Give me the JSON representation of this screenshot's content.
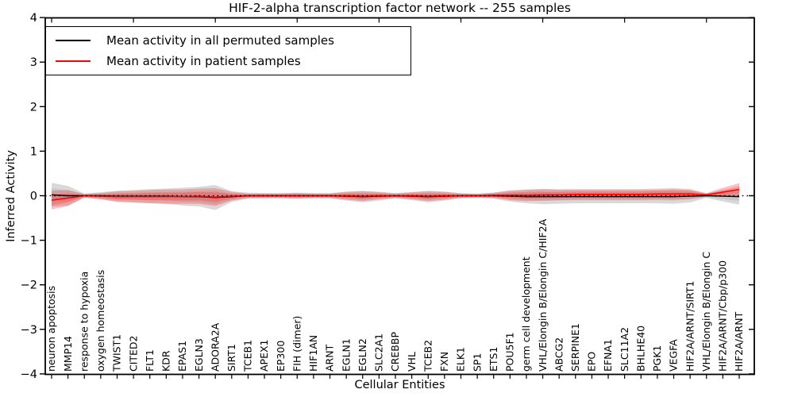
{
  "figure": {
    "background": "#ffffff",
    "axes_color": "#000000"
  },
  "chart_data": {
    "type": "line",
    "title": "HIF-2-alpha transcription factor network -- 255 samples",
    "xlabel": "Cellular Entities",
    "ylabel": "Inferred Activity",
    "ylim": [
      -4,
      4
    ],
    "yticks": [
      4,
      3,
      2,
      1,
      0,
      -1,
      -2,
      -3,
      -4
    ],
    "grid": false,
    "legend_position": "upper left",
    "zero_line_style": "dotted",
    "categories": [
      "neuron apoptosis",
      "MMP14",
      "response to hypoxia",
      "oxygen homeostasis",
      "TWIST1",
      "CITED2",
      "FLT1",
      "KDR",
      "EPAS1",
      "EGLN3",
      "ADORA2A",
      "SIRT1",
      "TCEB1",
      "APEX1",
      "EP300",
      "FIH (dimer)",
      "HIF1AN",
      "ARNT",
      "EGLN1",
      "EGLN2",
      "SLC2A1",
      "CREBBP",
      "VHL",
      "TCEB2",
      "FXN",
      "ELK1",
      "SP1",
      "ETS1",
      "POU5F1",
      "germ cell development",
      "VHL/Elongin B/Elongin C/HIF2A",
      "ABCG2",
      "SERPINE1",
      "EPO",
      "EFNA1",
      "SLC11A2",
      "BHLHE40",
      "PGK1",
      "VEGFA",
      "HIF2A/ARNT/SIRT1",
      "VHL/Elongin B/Elongin C",
      "HIF2A/ARNT/Cbp/p300",
      "HIF2A/ARNT"
    ],
    "series": [
      {
        "name": "Mean activity in all permuted samples",
        "color": "#000000",
        "band_rgb": "0,0,0",
        "band_outer_alpha": 0.15,
        "band_inner_alpha": 0.08,
        "mean": [
          0.02,
          0.0,
          0.0,
          0.0,
          -0.01,
          -0.01,
          -0.01,
          -0.01,
          -0.02,
          -0.02,
          -0.04,
          -0.02,
          0,
          0,
          0,
          0,
          0,
          0,
          -0.01,
          -0.02,
          -0.01,
          0,
          -0.01,
          -0.02,
          -0.01,
          0,
          0,
          0,
          -0.01,
          -0.02,
          -0.02,
          -0.02,
          -0.02,
          -0.02,
          -0.02,
          -0.02,
          -0.02,
          -0.02,
          -0.02,
          -0.01,
          0,
          -0.01,
          -0.02
        ],
        "std": [
          0.27,
          0.22,
          0.05,
          0.08,
          0.12,
          0.14,
          0.16,
          0.17,
          0.2,
          0.22,
          0.28,
          0.12,
          0.07,
          0.06,
          0.06,
          0.07,
          0.06,
          0.06,
          0.1,
          0.13,
          0.1,
          0.06,
          0.09,
          0.13,
          0.1,
          0.06,
          0.05,
          0.07,
          0.12,
          0.15,
          0.17,
          0.16,
          0.15,
          0.15,
          0.15,
          0.15,
          0.15,
          0.15,
          0.16,
          0.14,
          0.05,
          0.12,
          0.18
        ]
      },
      {
        "name": "Mean activity in patient samples",
        "color": "#ff0000",
        "band_rgb": "255,30,30",
        "band_outer_alpha": 0.27,
        "band_inner_alpha": 0.25,
        "mean": [
          -0.1,
          -0.05,
          0.0,
          -0.01,
          -0.02,
          -0.02,
          -0.02,
          -0.02,
          -0.02,
          -0.01,
          -0.03,
          -0.01,
          0,
          0,
          0,
          0,
          0,
          0,
          0,
          -0.01,
          0,
          0,
          0,
          -0.01,
          0,
          0,
          0,
          0.01,
          0.01,
          0.01,
          0.02,
          0.02,
          0.03,
          0.03,
          0.03,
          0.03,
          0.03,
          0.04,
          0.04,
          0.04,
          0.02,
          0.08,
          0.14
        ],
        "std": [
          0.21,
          0.18,
          0.04,
          0.07,
          0.12,
          0.13,
          0.15,
          0.16,
          0.16,
          0.17,
          0.2,
          0.1,
          0.05,
          0.05,
          0.05,
          0.06,
          0.05,
          0.05,
          0.09,
          0.11,
          0.08,
          0.05,
          0.08,
          0.11,
          0.09,
          0.05,
          0.04,
          0.06,
          0.11,
          0.13,
          0.13,
          0.12,
          0.12,
          0.12,
          0.12,
          0.12,
          0.12,
          0.12,
          0.13,
          0.11,
          0.04,
          0.1,
          0.14
        ]
      }
    ]
  }
}
